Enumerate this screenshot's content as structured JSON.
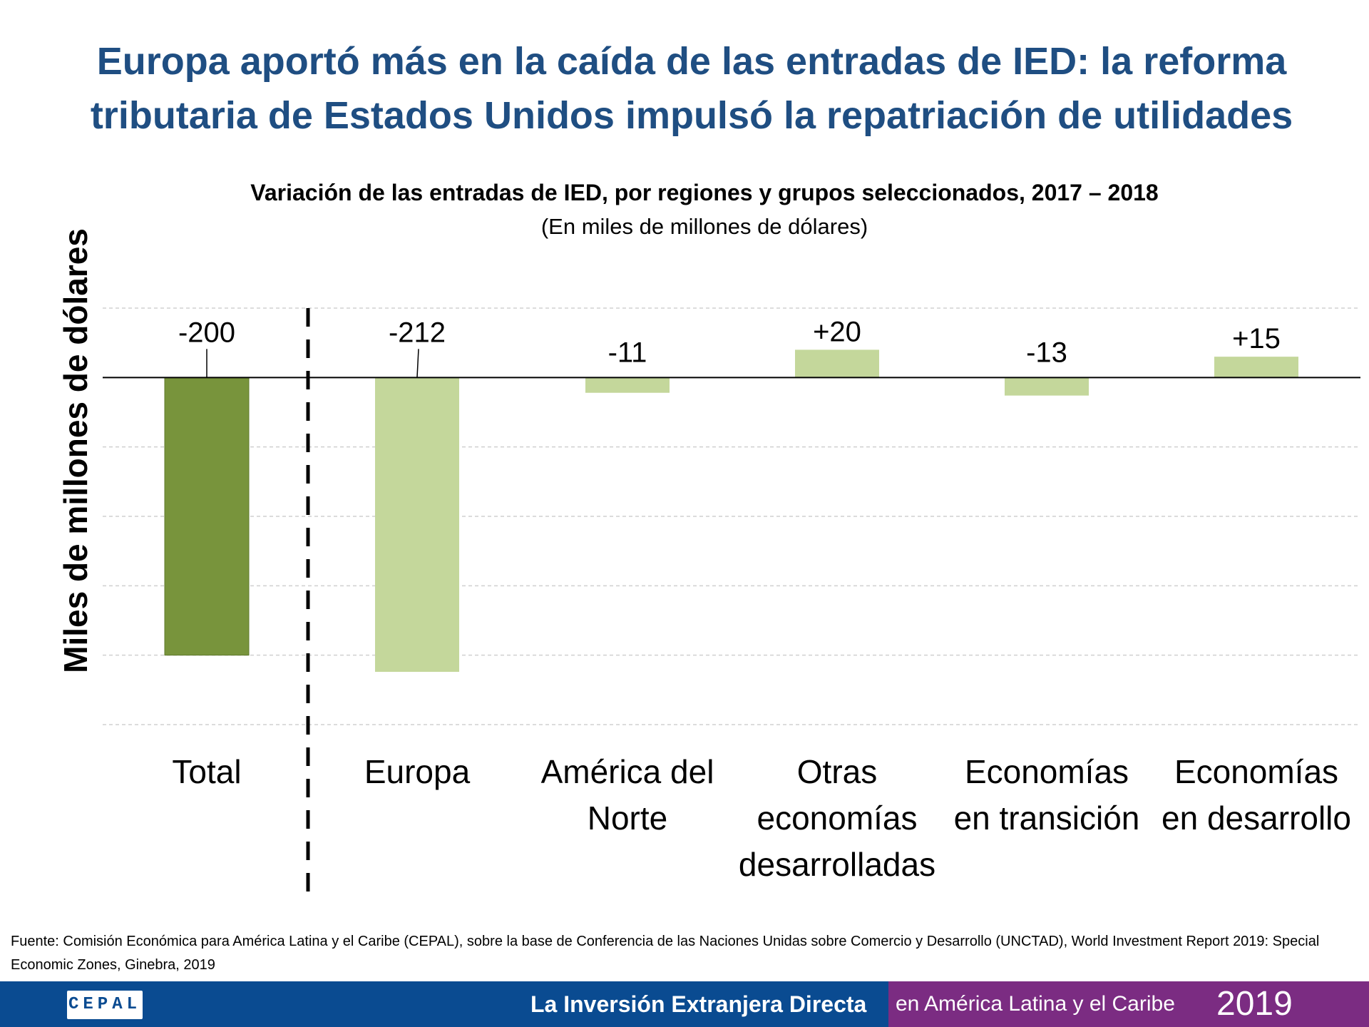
{
  "slide": {
    "title_line1": "Europa aportó más en la caída de las entradas de IED: la reforma",
    "title_line2": "tributaria de Estados Unidos impulsó la repatriación de utilidades"
  },
  "chart_data": {
    "type": "bar",
    "title": "Variación de las entradas de IED, por regiones y grupos seleccionados, 2017 – 2018",
    "subtitle": "(En miles de millones de dólares)",
    "ylabel": "Miles de millones de dólares",
    "xlabel": "",
    "ylim": [
      -250,
      50
    ],
    "grid": true,
    "categories": [
      [
        "Total"
      ],
      [
        "Europa"
      ],
      [
        "América del",
        "Norte"
      ],
      [
        "Otras",
        "economías",
        "desarrolladas"
      ],
      [
        "Economías",
        "en transición"
      ],
      [
        "Economías",
        "en desarrollo"
      ]
    ],
    "values": [
      -200,
      -212,
      -11,
      20,
      -13,
      15
    ],
    "data_labels": [
      "-200",
      "-212",
      "-11",
      "+20",
      "-13",
      "+15"
    ],
    "colors": [
      "#78943c",
      "#c4d79b",
      "#c4d79b",
      "#c4d79b",
      "#c4d79b",
      "#c4d79b"
    ],
    "separator_after_category": 0
  },
  "source": "Fuente: Comisión Económica para América Latina y el Caribe (CEPAL), sobre la base de Conferencia de las Naciones Unidas sobre Comercio y Desarrollo (UNCTAD), World Investment Report 2019: Special Economic Zones, Ginebra, 2019",
  "footer": {
    "logo": "CEPAL",
    "main": "La Inversión Extranjera Directa",
    "sub": "en América Latina y el Caribe",
    "year": "2019",
    "colors": {
      "blue": "#0a4b91",
      "purple": "#7b2c82"
    }
  }
}
